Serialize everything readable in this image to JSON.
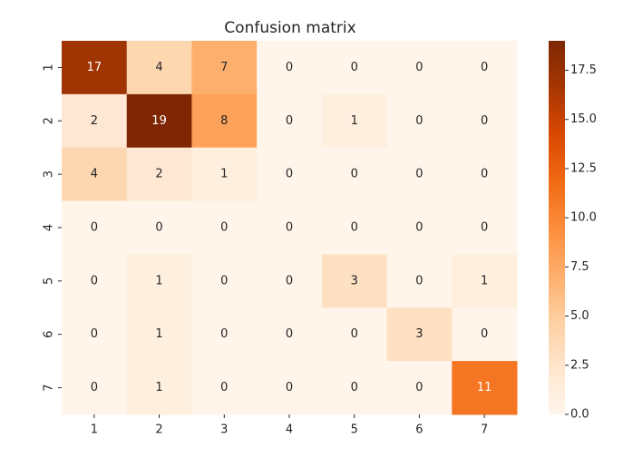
{
  "chart_data": {
    "type": "heatmap",
    "title": "Confusion matrix",
    "x": [
      "1",
      "2",
      "3",
      "4",
      "5",
      "6",
      "7"
    ],
    "y": [
      "1",
      "2",
      "3",
      "4",
      "5",
      "6",
      "7"
    ],
    "values": [
      [
        17,
        4,
        7,
        0,
        0,
        0,
        0
      ],
      [
        2,
        19,
        8,
        0,
        1,
        0,
        0
      ],
      [
        4,
        2,
        1,
        0,
        0,
        0,
        0
      ],
      [
        0,
        0,
        0,
        0,
        0,
        0,
        0
      ],
      [
        0,
        1,
        0,
        0,
        3,
        0,
        1
      ],
      [
        0,
        1,
        0,
        0,
        0,
        3,
        0
      ],
      [
        0,
        1,
        0,
        0,
        0,
        0,
        11
      ]
    ],
    "cmap": [
      "#fff5eb",
      "#fee6ce",
      "#fdd0a2",
      "#fdae6b",
      "#fd8d3c",
      "#f16913",
      "#d94801",
      "#a63603",
      "#7f2704"
    ],
    "zlim": [
      0,
      19
    ],
    "zticks": [
      {
        "value": 0,
        "label": "0.0"
      },
      2.5,
      {
        "value": 5,
        "label": "5.0"
      },
      7.5,
      {
        "value": 10,
        "label": "10.0"
      },
      12.5,
      {
        "value": 15,
        "label": "15.0"
      },
      17.5
    ]
  }
}
